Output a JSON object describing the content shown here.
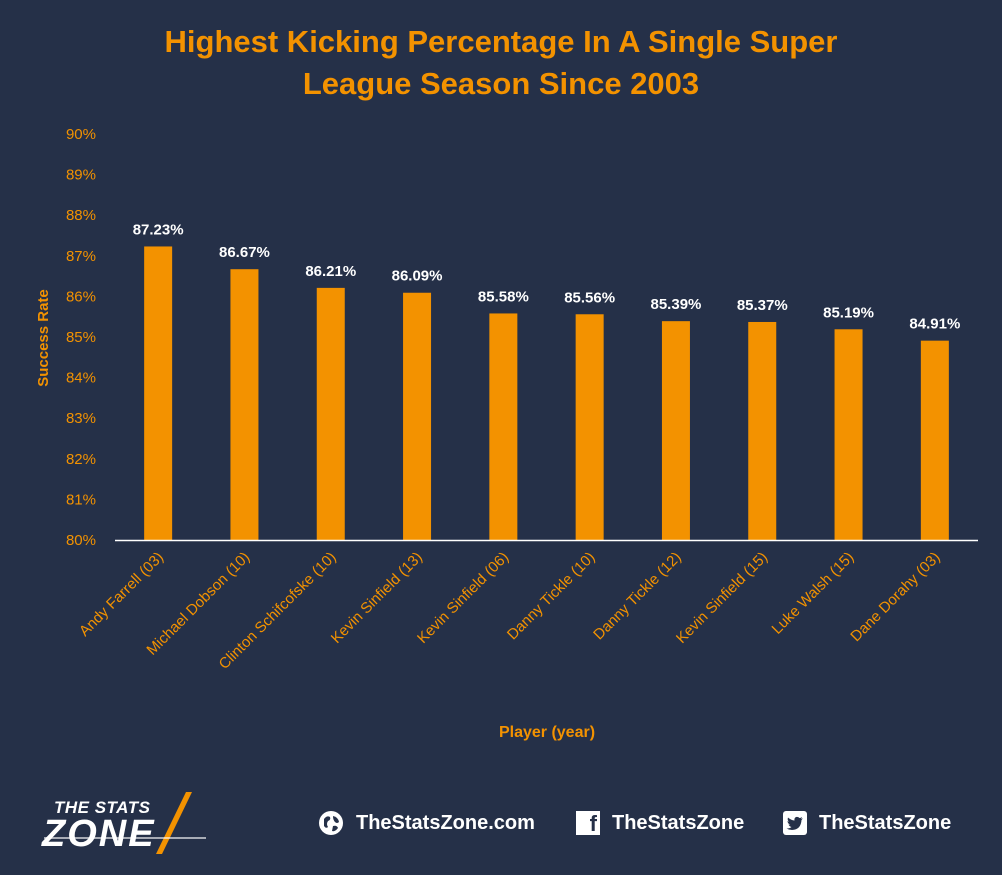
{
  "chart_data": {
    "type": "bar",
    "title_lines": [
      "Highest Kicking Percentage In A Single Super",
      "League Season Since 2003"
    ],
    "xlabel": "Player (year)",
    "ylabel": "Success Rate",
    "ylim": [
      80,
      90
    ],
    "yticks": [
      "80%",
      "81%",
      "82%",
      "83%",
      "84%",
      "85%",
      "86%",
      "87%",
      "88%",
      "89%",
      "90%"
    ],
    "categories": [
      "Andy Farrell (03)",
      "Michael Dobson (10)",
      "Clinton Schifcofske (10)",
      "Kevin Sinfield (13)",
      "Kevin Sinfield (06)",
      "Danny Tickle (10)",
      "Danny Tickle (12)",
      "Kevin Sinfield (15)",
      "Luke Walsh (15)",
      "Dane Dorahy (03)"
    ],
    "values": [
      87.23,
      86.67,
      86.21,
      86.09,
      85.58,
      85.56,
      85.39,
      85.37,
      85.19,
      84.91
    ],
    "data_labels": [
      "87.23%",
      "86.67%",
      "86.21%",
      "86.09%",
      "85.58%",
      "85.56%",
      "85.39%",
      "85.37%",
      "85.19%",
      "84.91%"
    ],
    "grid": false,
    "colors": {
      "background": "#253048",
      "bar": "#f39200",
      "axis_text": "#f39200",
      "data_label": "#ffffff",
      "axis_line": "#ffffff"
    }
  },
  "footer": {
    "logo_top": "THE STATS",
    "logo_bottom": "ZONE",
    "website": "TheStatsZone.com",
    "facebook": "TheStatsZone",
    "twitter": "TheStatsZone",
    "icons": [
      "globe-icon",
      "facebook-icon",
      "twitter-icon"
    ]
  }
}
